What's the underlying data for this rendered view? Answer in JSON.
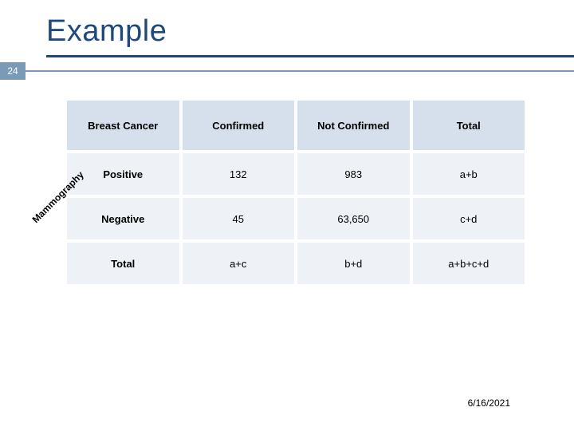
{
  "title": "Example",
  "title_color": "#1f497d",
  "title_underline_color": "#1f497d",
  "page_number": "24",
  "pagenum_bg": "#7a9ab8",
  "pagenum_line_color": "#7a9ab8",
  "rotated_label": "Mammography",
  "table": {
    "header_bg": "#d6e0ec",
    "cell_bg": "#eef2f7",
    "columns": [
      "Breast Cancer",
      "Confirmed",
      "Not Confirmed",
      "Total"
    ],
    "rows": [
      [
        "Positive",
        "132",
        "983",
        "a+b"
      ],
      [
        "Negative",
        "45",
        "63,650",
        "c+d"
      ],
      [
        "Total",
        "a+c",
        "b+d",
        "a+b+c+d"
      ]
    ]
  },
  "footer_date": "6/16/2021"
}
